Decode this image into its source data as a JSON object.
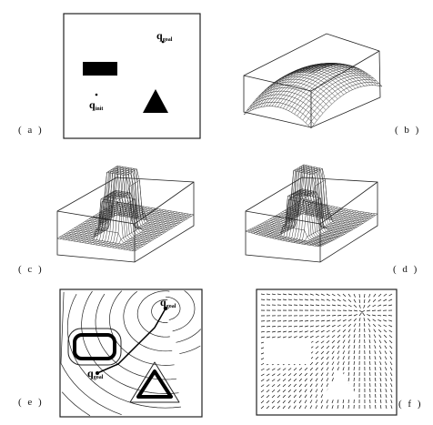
{
  "figure": {
    "panels": [
      {
        "id": "a",
        "label": "( a )"
      },
      {
        "id": "b",
        "label": "( b )"
      },
      {
        "id": "c",
        "label": "( c )"
      },
      {
        "id": "d",
        "label": "( d )"
      },
      {
        "id": "e",
        "label": "( e )"
      },
      {
        "id": "f",
        "label": "( f )"
      }
    ],
    "annotations": {
      "q_goal_a": {
        "base": "q",
        "sub": "goal"
      },
      "q_init_a": {
        "base": "q",
        "sub": "init"
      },
      "q_goal_e": {
        "base": "q",
        "sub": "goal"
      },
      "q_goal_e2": {
        "base": "q",
        "sub": "goal"
      }
    }
  }
}
